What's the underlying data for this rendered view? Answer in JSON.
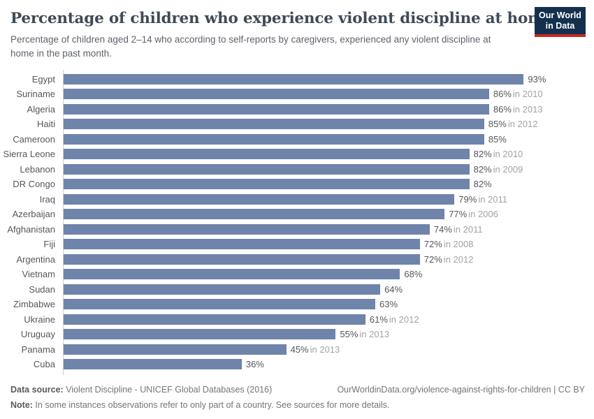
{
  "header": {
    "title": "Percentage of children who experience violent discipline at home",
    "subtitle": "Percentage of children aged 2–14 who according to self-reports by caregivers, experienced any violent discipline at home in the past month.",
    "logo": {
      "line1": "Our World",
      "line2": "in Data",
      "bg_color": "#15304e",
      "accent_color": "#c52b20"
    }
  },
  "chart_data": {
    "type": "bar",
    "orientation": "horizontal",
    "title": "Percentage of children who experience violent discipline at home",
    "xlabel": "",
    "ylabel": "",
    "xlim": [
      0,
      100
    ],
    "unit": "%",
    "grid": false,
    "bar_color": "#6e84aa",
    "bars": [
      {
        "label": "Egypt",
        "value": 93,
        "value_label": "93%",
        "year_label": ""
      },
      {
        "label": "Suriname",
        "value": 86,
        "value_label": "86%",
        "year_label": "in 2010"
      },
      {
        "label": "Algeria",
        "value": 86,
        "value_label": "86%",
        "year_label": "in 2013"
      },
      {
        "label": "Haiti",
        "value": 85,
        "value_label": "85%",
        "year_label": "in 2012"
      },
      {
        "label": "Cameroon",
        "value": 85,
        "value_label": "85%",
        "year_label": ""
      },
      {
        "label": "Sierra Leone",
        "value": 82,
        "value_label": "82%",
        "year_label": "in 2010"
      },
      {
        "label": "Lebanon",
        "value": 82,
        "value_label": "82%",
        "year_label": "in 2009"
      },
      {
        "label": "DR Congo",
        "value": 82,
        "value_label": "82%",
        "year_label": ""
      },
      {
        "label": "Iraq",
        "value": 79,
        "value_label": "79%",
        "year_label": "in 2011"
      },
      {
        "label": "Azerbaijan",
        "value": 77,
        "value_label": "77%",
        "year_label": "in 2006"
      },
      {
        "label": "Afghanistan",
        "value": 74,
        "value_label": "74%",
        "year_label": "in 2011"
      },
      {
        "label": "Fiji",
        "value": 72,
        "value_label": "72%",
        "year_label": "in 2008"
      },
      {
        "label": "Argentina",
        "value": 72,
        "value_label": "72%",
        "year_label": "in 2012"
      },
      {
        "label": "Vietnam",
        "value": 68,
        "value_label": "68%",
        "year_label": ""
      },
      {
        "label": "Sudan",
        "value": 64,
        "value_label": "64%",
        "year_label": ""
      },
      {
        "label": "Zimbabwe",
        "value": 63,
        "value_label": "63%",
        "year_label": ""
      },
      {
        "label": "Ukraine",
        "value": 61,
        "value_label": "61%",
        "year_label": "in 2012"
      },
      {
        "label": "Uruguay",
        "value": 55,
        "value_label": "55%",
        "year_label": "in 2013"
      },
      {
        "label": "Panama",
        "value": 45,
        "value_label": "45%",
        "year_label": "in 2013"
      },
      {
        "label": "Cuba",
        "value": 36,
        "value_label": "36%",
        "year_label": ""
      }
    ]
  },
  "footer": {
    "datasource_label": "Data source:",
    "datasource_text": " Violent Discipline - UNICEF Global Databases (2016)",
    "url_text": "OurWorldinData.org/violence-against-rights-for-children | CC BY",
    "note_label": "Note:",
    "note_text": " In some instances observations refer to only part of a country. See sources for more details."
  }
}
